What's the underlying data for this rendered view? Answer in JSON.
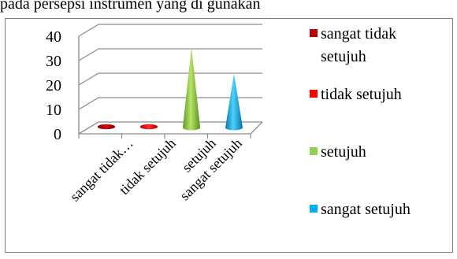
{
  "header": {
    "partial_text": "pada persepsi instrumen yang di gunakan"
  },
  "chart_data": {
    "type": "bar",
    "style": "3d-cone",
    "categories": [
      "sangat tidak…",
      "tidak setujuh",
      "setujuh",
      "sangat setujuh"
    ],
    "series": [
      {
        "name": "sangat tidak setujuh",
        "color": "#C00000",
        "values": [
          0.5,
          null,
          null,
          null
        ]
      },
      {
        "name": "tidak setujuh",
        "color": "#FF0000",
        "values": [
          null,
          0.5,
          null,
          null
        ]
      },
      {
        "name": "setujuh",
        "color": "#92D050",
        "values": [
          null,
          null,
          33,
          null
        ]
      },
      {
        "name": "sangat setujuh",
        "color": "#00B0F0",
        "values": [
          null,
          null,
          null,
          22
        ]
      }
    ],
    "yticks": [
      0,
      10,
      20,
      30,
      40
    ],
    "ylim": [
      0,
      40
    ],
    "grid": true,
    "legend_position": "right",
    "legend_labels": [
      [
        "sangat tidak",
        "setujuh"
      ],
      [
        "tidak setujuh"
      ],
      [
        "setujuh"
      ],
      [
        "sangat setujuh"
      ]
    ]
  }
}
